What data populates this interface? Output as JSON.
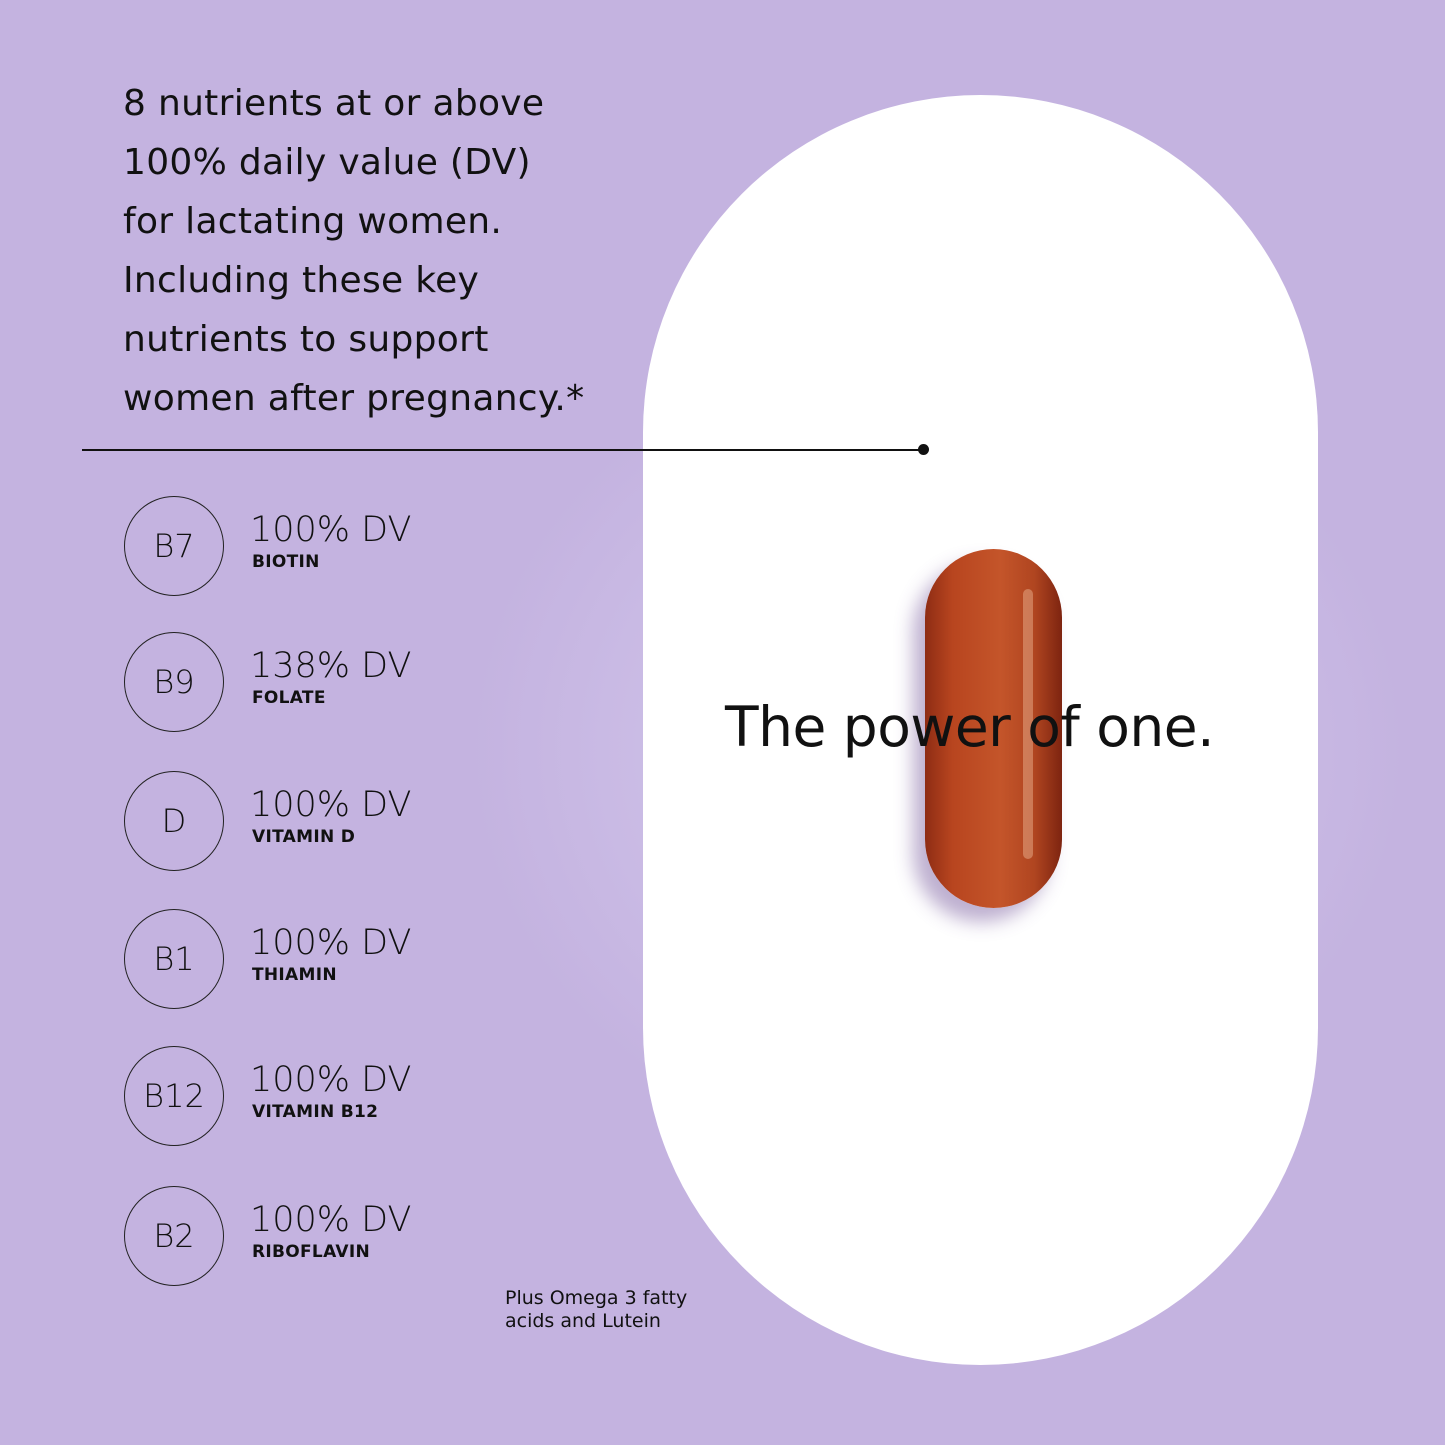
{
  "headline": [
    "8 nutrients at or above",
    "100% daily value (DV)",
    "for lactating women.",
    "Including these key",
    "nutrients to support",
    "women after pregnancy.*"
  ],
  "nutrients": [
    {
      "symbol": "B7",
      "percent": "100% DV",
      "name": "BIOTIN"
    },
    {
      "symbol": "B9",
      "percent": "138% DV",
      "name": "FOLATE"
    },
    {
      "symbol": "D",
      "percent": "100% DV",
      "name": "VITAMIN D"
    },
    {
      "symbol": "B1",
      "percent": "100% DV",
      "name": "THIAMIN"
    },
    {
      "symbol": "B12",
      "percent": "100% DV",
      "name": "VITAMIN B12"
    },
    {
      "symbol": "B2",
      "percent": "100% DV",
      "name": "RIBOFLAVIN"
    }
  ],
  "tagline": "The power of one.",
  "footnote": [
    "Plus Omega 3 fatty",
    "acids and Lutein"
  ],
  "colors": {
    "background": "#c4b3e0",
    "capsule": "#b8451f",
    "panel": "#ffffff"
  }
}
